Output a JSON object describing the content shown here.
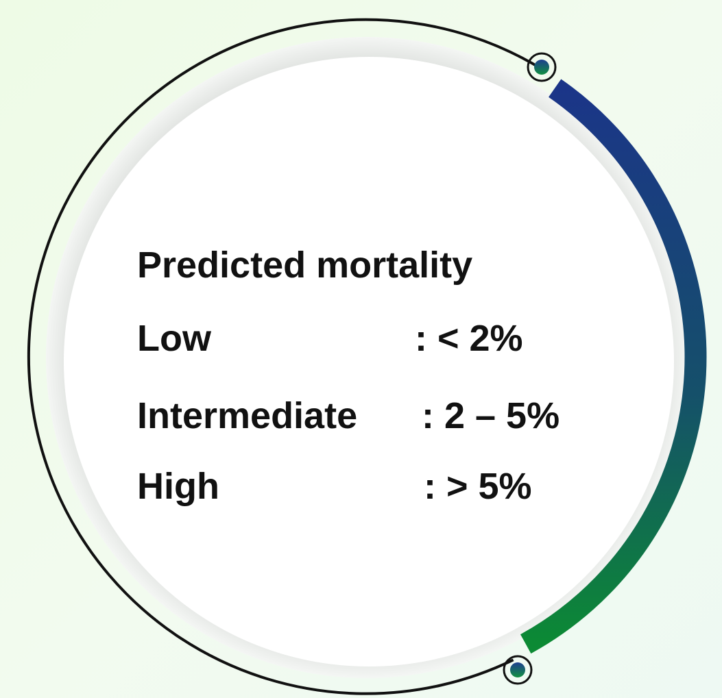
{
  "title": "Predicted mortality",
  "rows": [
    {
      "label": "Low",
      "value": ": < 2%"
    },
    {
      "label": "Intermediate",
      "value": ": 2 – 5%"
    },
    {
      "label": "High",
      "value": ": > 5%"
    }
  ]
}
